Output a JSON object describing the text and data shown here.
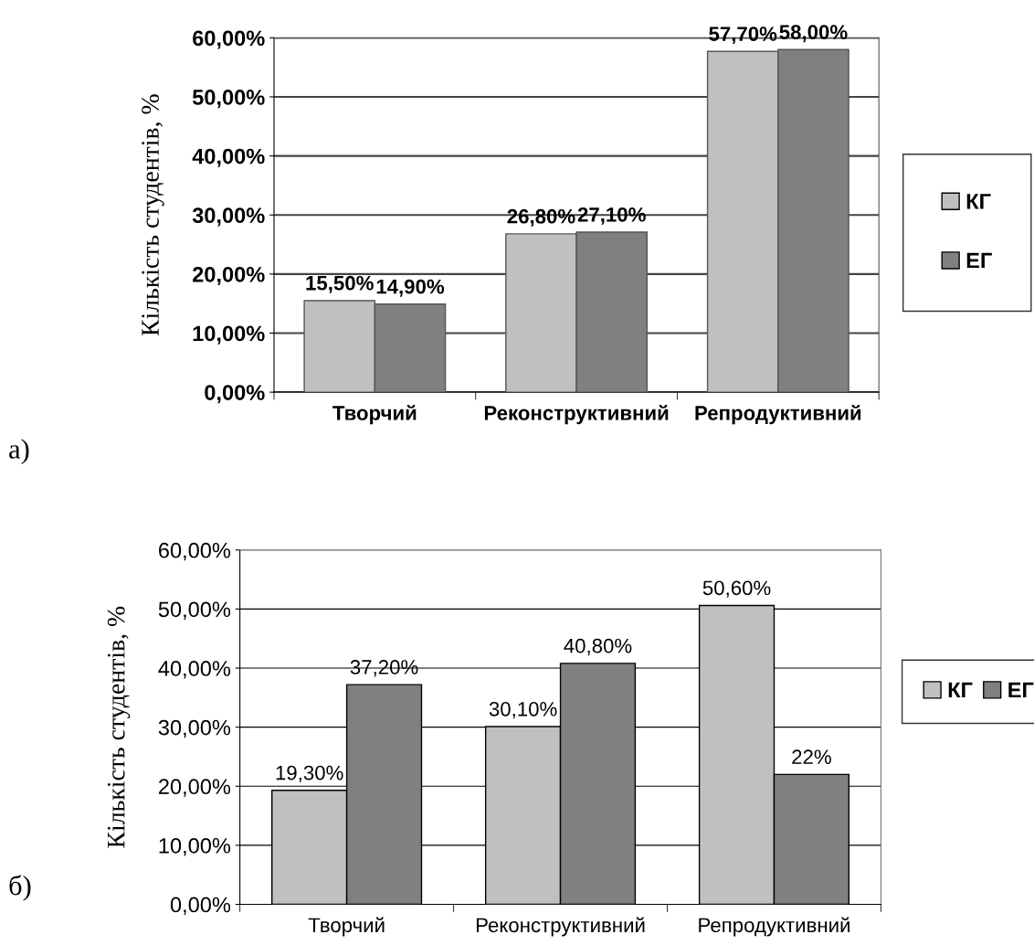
{
  "chart_data": [
    {
      "type": "bar",
      "ylabel": "Кількість студентів, %",
      "annotations": [
        "а)"
      ],
      "categories": [
        "Творчий",
        "Реконструктивний",
        "Репродуктивний"
      ],
      "series": [
        {
          "name": "КГ",
          "color": "#c0c0c0",
          "values": [
            15.5,
            26.8,
            57.7
          ],
          "value_labels": [
            "15,50%",
            "26,80%",
            "57,70%"
          ]
        },
        {
          "name": "ЕГ",
          "color": "#808080",
          "values": [
            14.9,
            27.1,
            58.0
          ],
          "value_labels": [
            "14,90%",
            "27,10%",
            "58,00%"
          ]
        }
      ],
      "ylim": [
        0,
        60
      ],
      "yticks": [
        {
          "value": 0,
          "label": "0,00%"
        },
        {
          "value": 10,
          "label": "10,00%"
        },
        {
          "value": 20,
          "label": "20,00%"
        },
        {
          "value": 30,
          "label": "30,00%"
        },
        {
          "value": 40,
          "label": "40,00%"
        },
        {
          "value": 50,
          "label": "50,00%"
        },
        {
          "value": 60,
          "label": "60,00%"
        }
      ],
      "grid": "y",
      "legend": "right"
    },
    {
      "type": "bar",
      "ylabel": "Кількість студентів, %",
      "annotations": [
        "б)"
      ],
      "categories": [
        "Творчий",
        "Реконструктивний",
        "Репродуктивний"
      ],
      "series": [
        {
          "name": "КГ",
          "color": "#c0c0c0",
          "values": [
            19.3,
            30.1,
            50.6
          ],
          "value_labels": [
            "19,30%",
            "30,10%",
            "50,60%"
          ]
        },
        {
          "name": "ЕГ",
          "color": "#808080",
          "values": [
            37.2,
            40.8,
            22
          ],
          "value_labels": [
            "37,20%",
            "40,80%",
            "22%"
          ]
        }
      ],
      "ylim": [
        0,
        60
      ],
      "yticks": [
        {
          "value": 0,
          "label": "0,00%"
        },
        {
          "value": 10,
          "label": "10,00%"
        },
        {
          "value": 20,
          "label": "20,00%"
        },
        {
          "value": 30,
          "label": "30,00%"
        },
        {
          "value": 40,
          "label": "40,00%"
        },
        {
          "value": 50,
          "label": "50,00%"
        },
        {
          "value": 60,
          "label": "60,00%"
        }
      ],
      "grid": "y",
      "legend": "right"
    }
  ]
}
